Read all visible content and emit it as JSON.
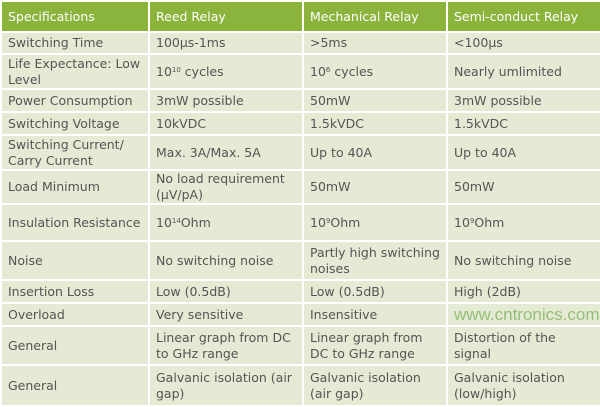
{
  "headers": [
    "Specifications",
    "Reed Relay",
    "Mechanical Relay",
    "Semi-conduct Relay"
  ],
  "rows": [
    {
      "label": "Switching Time",
      "reed": "100µs-1ms",
      "mech": ">5ms",
      "semi": "<100µs"
    },
    {
      "label": "Life Expectance: Low Level",
      "reed_base": "10",
      "reed_exp": "10",
      "reed": " cycles",
      "mech_base": "10",
      "mech_exp": "6",
      "mech": " cycles",
      "semi": "Nearly umlimited"
    },
    {
      "label": "Power Consumption",
      "reed": "3mW possible",
      "mech": "50mW",
      "semi": "3mW possible"
    },
    {
      "label": "Switching Voltage",
      "reed": "10kVDC",
      "mech": "1.5kVDC",
      "semi": "1.5kVDC"
    },
    {
      "label": "Switching Current/ Carry Current",
      "reed": "Max. 3A/Max. 5A",
      "mech": "Up to 40A",
      "semi": "Up to 40A"
    },
    {
      "label": "Load Minimum",
      "reed": "No load requirement (µV/pA)",
      "mech": "50mW",
      "semi": "50mW"
    },
    {
      "label": "Insulation Resistance",
      "reed_base": "10",
      "reed_exp": "14",
      "reed": "Ohm",
      "mech_base": "10",
      "mech_exp": "9",
      "mech": "Ohm",
      "semi_base": "10",
      "semi_exp": "9",
      "semi": "Ohm"
    },
    {
      "label": "Noise",
      "reed": "No switching noise",
      "mech": "Partly high switching noises",
      "semi": "No switching noise"
    },
    {
      "label": "Insertion Loss",
      "reed": "Low (0.5dB)",
      "mech": "Low (0.5dB)",
      "semi": "High (2dB)"
    },
    {
      "label": "Overload",
      "reed": "Very sensitive",
      "mech": "Insensitive",
      "semi": ""
    },
    {
      "label": "General",
      "reed": "Linear graph from DC to GHz range",
      "mech": "Linear graph from DC to GHz range",
      "semi": "Distortion of the signal"
    },
    {
      "label": "General",
      "reed": "Galvanic isolation (air gap)",
      "mech": "Galvanic isolation (air gap)",
      "semi": "Galvanic isolation (low/high)"
    }
  ],
  "watermark": "www.cntronics.com"
}
